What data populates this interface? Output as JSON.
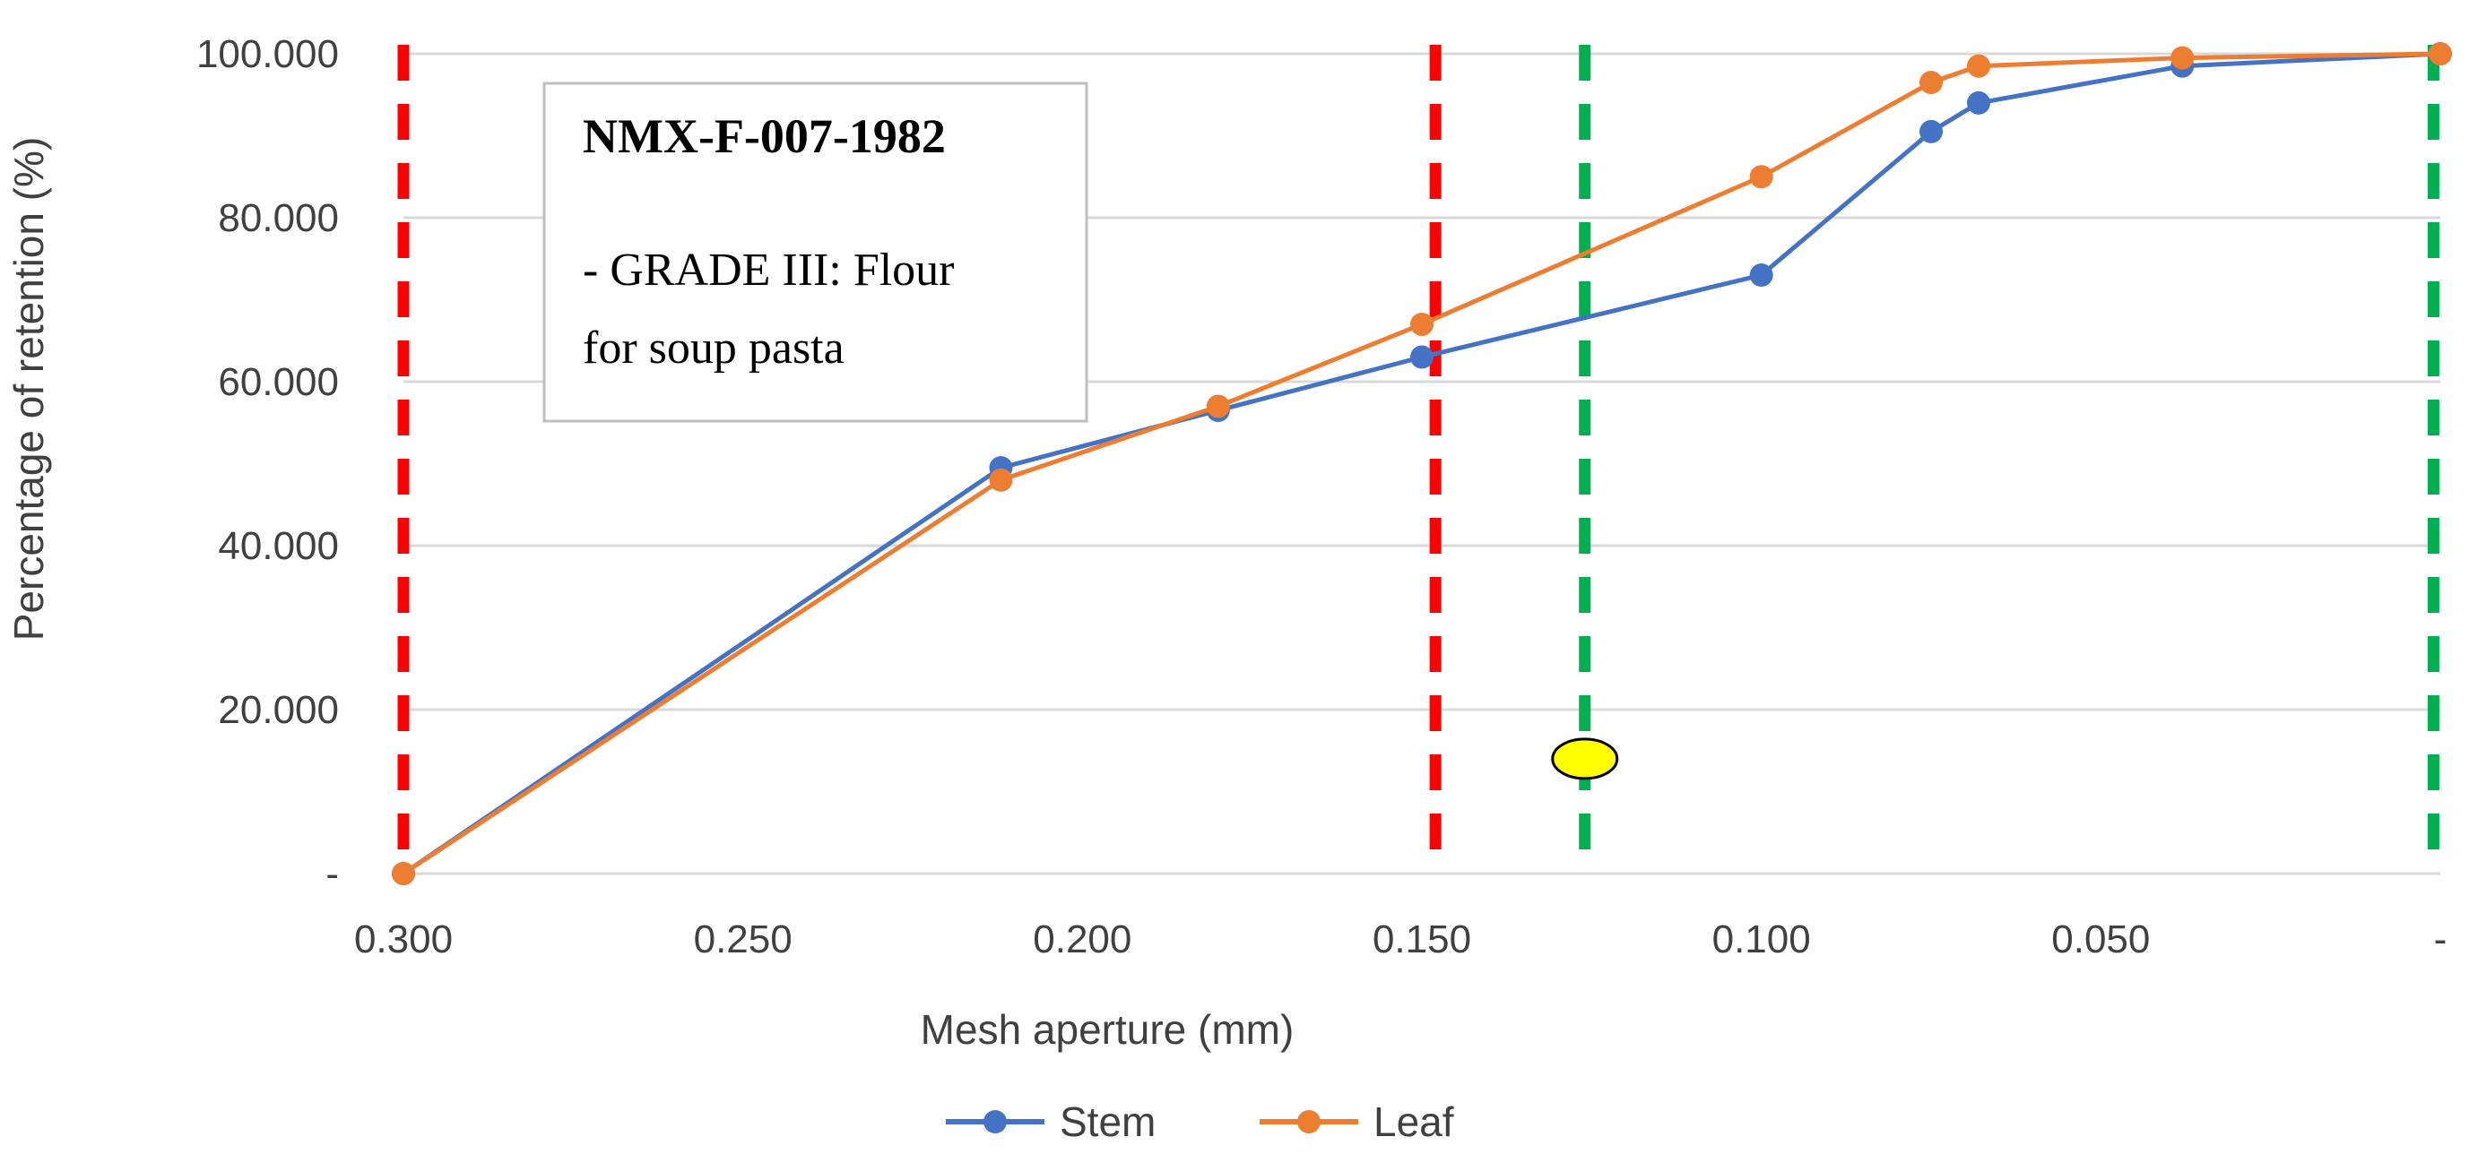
{
  "chart_data": {
    "type": "line",
    "title": "",
    "xlabel": "Mesh aperture (mm)",
    "ylabel": "Percentage of retention (%)",
    "xlim": [
      0.3,
      0
    ],
    "ylim": [
      0,
      100
    ],
    "x_reversed": true,
    "x_ticks": [
      0.3,
      0.25,
      0.2,
      0.15,
      0.1,
      0.05,
      0
    ],
    "x_tick_labels": [
      "0.300",
      "0.250",
      "0.200",
      "0.150",
      "0.100",
      "0.050",
      "-"
    ],
    "y_ticks": [
      0,
      20,
      40,
      60,
      80,
      100
    ],
    "y_tick_labels": [
      "-",
      "20.000",
      "40.000",
      "60.000",
      "80.000",
      "100.000"
    ],
    "grid": true,
    "legend_position": "bottom-center",
    "series": [
      {
        "name": "Stem",
        "color": "#4472C4",
        "x": [
          0.3,
          0.212,
          0.18,
          0.15,
          0.1,
          0.075,
          0.068,
          0.038,
          0
        ],
        "y": [
          0,
          49.5,
          56.5,
          63,
          73,
          90.5,
          94,
          98.5,
          100
        ]
      },
      {
        "name": "Leaf",
        "color": "#ED7D31",
        "x": [
          0.3,
          0.212,
          0.18,
          0.15,
          0.1,
          0.075,
          0.068,
          0.038,
          0
        ],
        "y": [
          0,
          48,
          57,
          67,
          85,
          96.5,
          98.5,
          99.5,
          100
        ]
      }
    ],
    "reference_lines": [
      {
        "name": "red-limit-left",
        "x": 0.3,
        "color": "#FF0000",
        "style": "dashed"
      },
      {
        "name": "red-limit-right",
        "x": 0.148,
        "color": "#FF0000",
        "style": "dashed"
      },
      {
        "name": "green-limit-left",
        "x": 0.126,
        "color": "#00B050",
        "style": "dashed"
      },
      {
        "name": "green-limit-right",
        "x": 0.001,
        "color": "#00B050",
        "style": "dashed"
      }
    ],
    "marker": {
      "x": 0.126,
      "y": 14,
      "color": "#FFFF00"
    },
    "annotation": {
      "title": "NMX-F-007-1982",
      "line1": "- GRADE III: Flour",
      "line2": "for soup pasta"
    }
  }
}
